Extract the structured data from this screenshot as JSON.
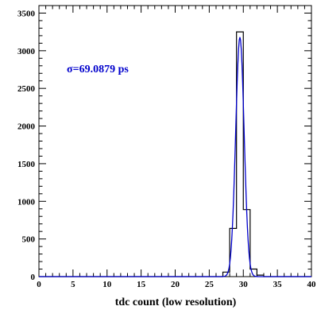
{
  "chart_data": {
    "type": "histogram",
    "xlabel": "tdc count (low resolution)",
    "ylabel": "",
    "title": "",
    "xlim": [
      0,
      40
    ],
    "ylim": [
      0,
      3600
    ],
    "x_ticks": [
      0,
      5,
      10,
      15,
      20,
      25,
      30,
      35,
      40
    ],
    "y_ticks": [
      0,
      500,
      1000,
      1500,
      2000,
      2500,
      3000,
      3500
    ],
    "bin_width": 1,
    "bins": [
      {
        "x0": 27,
        "x1": 28,
        "count": 60
      },
      {
        "x0": 28,
        "x1": 29,
        "count": 640
      },
      {
        "x0": 29,
        "x1": 30,
        "count": 3250
      },
      {
        "x0": 30,
        "x1": 31,
        "count": 890
      },
      {
        "x0": 31,
        "x1": 32,
        "count": 100
      },
      {
        "x0": 32,
        "x1": 33,
        "count": 20
      }
    ],
    "fit": {
      "type": "gaussian",
      "color": "#0000cc",
      "mean": 29.5,
      "sigma_counts": 0.62,
      "amplitude": 3180
    },
    "annotation": {
      "text": "σ=69.0879 ps",
      "color": "#0000cc"
    },
    "grid": false,
    "histogram_color": "#000000"
  }
}
